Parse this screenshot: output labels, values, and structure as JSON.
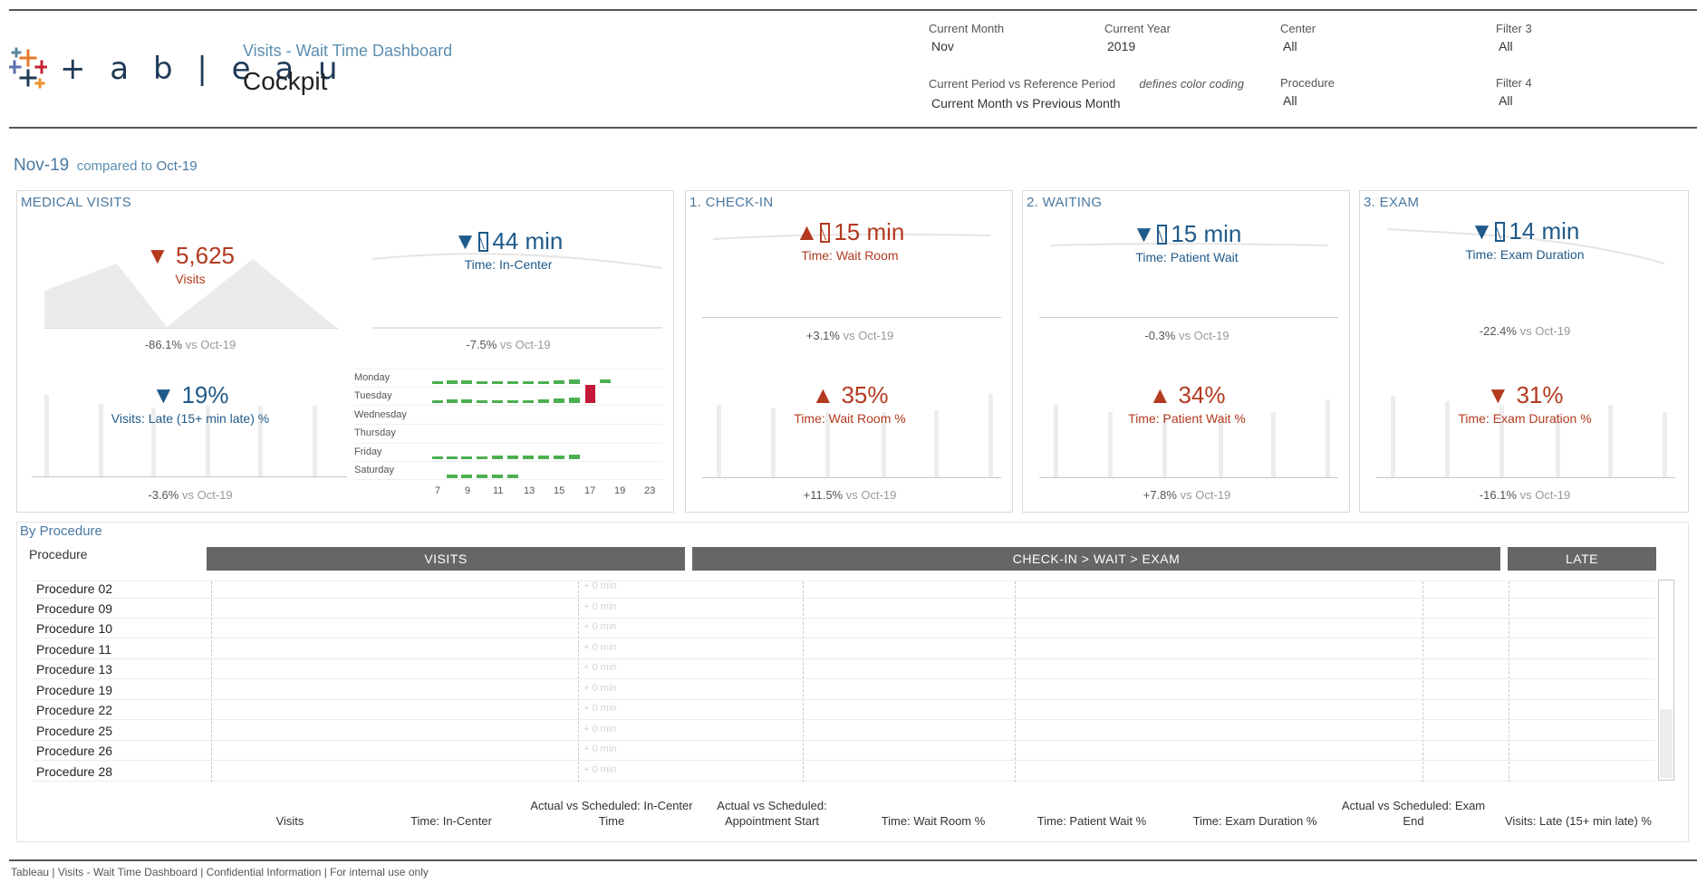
{
  "header": {
    "logo_text": "+ a b | e a u",
    "subtitle": "Visits - Wait Time Dashboard",
    "title": "Cockpit"
  },
  "filters": {
    "current_month": {
      "label": "Current Month",
      "value": "Nov"
    },
    "current_year": {
      "label": "Current Year",
      "value": "2019"
    },
    "center": {
      "label": "Center",
      "value": "All"
    },
    "filter3": {
      "label": "Filter 3",
      "value": "All"
    },
    "period": {
      "label": "Current Period vs Reference Period",
      "note": "defines color coding",
      "value": "Current Month vs Previous Month"
    },
    "procedure": {
      "label": "Procedure",
      "value": "All"
    },
    "filter4": {
      "label": "Filter 4",
      "value": "All"
    }
  },
  "period": {
    "current": "Nov-19",
    "compared_to": "compared to",
    "reference": "Oct-19"
  },
  "panels": {
    "medical_visits": {
      "title": "MEDICAL VISITS",
      "visits": {
        "arrow": "▼",
        "value": "5,625",
        "label": "Visits",
        "delta": "-86.1%",
        "vs": "vs Oct-19"
      },
      "in_center": {
        "arrow": "▼",
        "value": "44 min",
        "label": "Time: In-Center",
        "delta": "-7.5%",
        "vs": "vs Oct-19"
      },
      "late": {
        "arrow": "▼",
        "value": "19%",
        "label": "Visits: Late (15+ min late) %",
        "delta": "-3.6%",
        "vs": "vs Oct-19"
      },
      "heatmap": {
        "days": [
          "Monday",
          "Tuesday",
          "Wednesday",
          "Thursday",
          "Friday",
          "Saturday"
        ],
        "hours": [
          "7",
          "9",
          "11",
          "13",
          "15",
          "17",
          "19",
          "23"
        ]
      }
    },
    "checkin": {
      "title": "1. CHECK-IN",
      "time": {
        "arrow": "▲",
        "value": "15 min",
        "label": "Time: Wait Room",
        "delta": "+3.1%",
        "vs": "vs Oct-19"
      },
      "pct": {
        "arrow": "▲",
        "value": "35%",
        "label": "Time: Wait Room %",
        "delta": "+11.5%",
        "vs": "vs Oct-19"
      }
    },
    "waiting": {
      "title": "2. WAITING",
      "time": {
        "arrow": "▼",
        "value": "15 min",
        "label": "Time: Patient Wait",
        "delta": "-0.3%",
        "vs": "vs Oct-19"
      },
      "pct": {
        "arrow": "▲",
        "value": "34%",
        "label": "Time: Patient Wait %",
        "delta": "+7.8%",
        "vs": "vs Oct-19"
      }
    },
    "exam": {
      "title": "3. EXAM",
      "time": {
        "arrow": "▼",
        "value": "14 min",
        "label": "Time: Exam Duration",
        "delta": "-22.4%",
        "vs": "vs Oct-19"
      },
      "pct": {
        "arrow": "▼",
        "value": "31%",
        "label": "Time: Exam Duration %",
        "delta": "-16.1%",
        "vs": "vs Oct-19"
      }
    }
  },
  "by_procedure": {
    "title": "By Procedure",
    "col_label": "Procedure",
    "groups": {
      "visits": "VISITS",
      "flow": "CHECK-IN > WAIT > EXAM",
      "late": "LATE"
    },
    "ghost_text": "+ 0 min",
    "rows": [
      "Procedure 02",
      "Procedure 09",
      "Procedure 10",
      "Procedure 11",
      "Procedure 13",
      "Procedure 19",
      "Procedure 22",
      "Procedure 25",
      "Procedure 26",
      "Procedure 28"
    ],
    "columns": [
      "Visits",
      "Time: In-Center",
      "Actual vs Scheduled: In-Center Time",
      "Actual vs Scheduled: Appointment Start",
      "Time: Wait Room %",
      "Time: Patient Wait %",
      "Time: Exam Duration %",
      "Actual vs Scheduled: Exam End",
      "Visits: Late (15+ min late) %"
    ]
  },
  "footer": "Tableau | Visits - Wait Time Dashboard | Confidential Information | For internal use only",
  "colors": {
    "positive": "#1f5a8a",
    "negative": "#b33a1f",
    "accent": "#4a78a0",
    "heat_green": "#4caf50",
    "heat_red": "#c2183a"
  }
}
